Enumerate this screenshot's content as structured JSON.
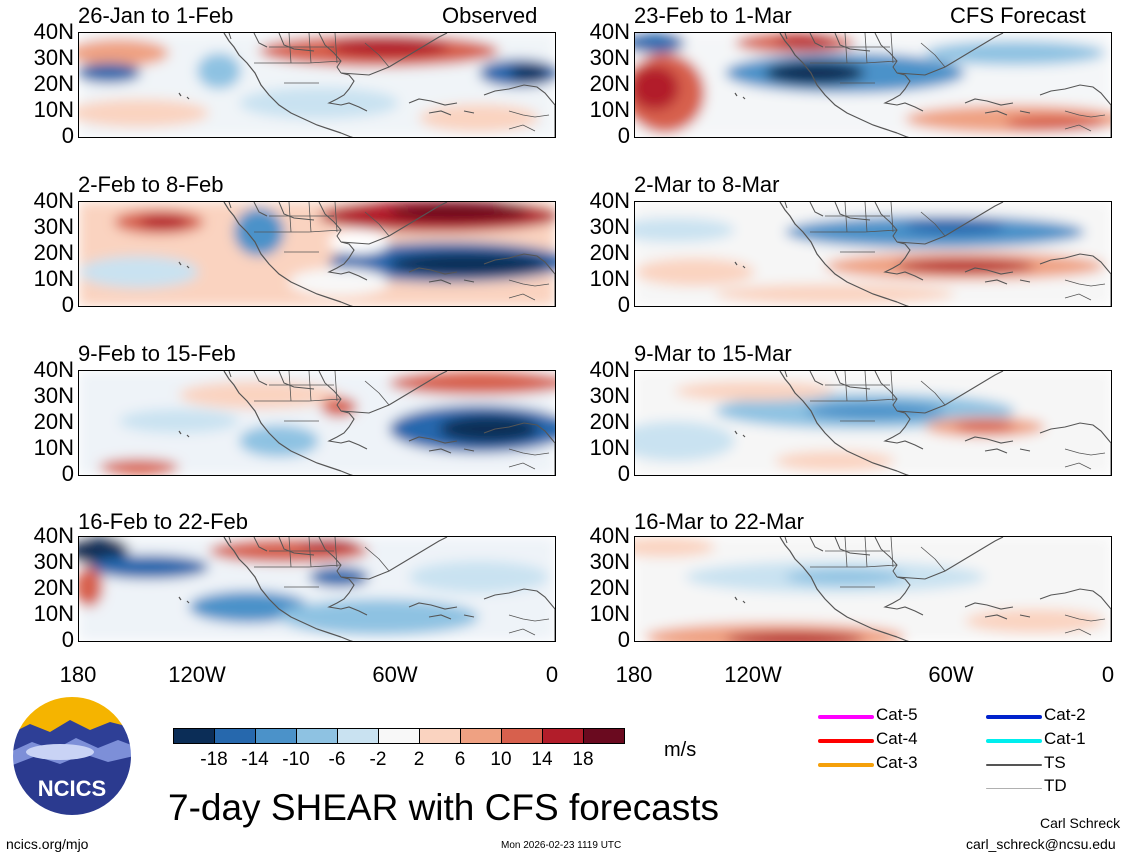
{
  "observed_label": "Observed",
  "forecast_label": "CFS Forecast",
  "panels": [
    {
      "title": "26-Jan to 1-Feb"
    },
    {
      "title": "2-Feb to 8-Feb"
    },
    {
      "title": "9-Feb to 15-Feb"
    },
    {
      "title": "16-Feb to 22-Feb"
    },
    {
      "title": "23-Feb to 1-Mar"
    },
    {
      "title": "2-Mar to 8-Mar"
    },
    {
      "title": "9-Mar to 15-Mar"
    },
    {
      "title": "16-Mar to 22-Mar"
    }
  ],
  "y_ticks": [
    "40N",
    "30N",
    "20N",
    "10N",
    "0"
  ],
  "x_ticks": [
    "180",
    "120W",
    "60W",
    "0"
  ],
  "colorbar": {
    "labels": [
      "-18",
      "-14",
      "-10",
      "-6",
      "-2",
      "2",
      "6",
      "10",
      "14",
      "18"
    ],
    "colors": [
      "#0b2d57",
      "#2668ad",
      "#4b92c9",
      "#8ec2e2",
      "#c9e2f1",
      "#f8f8f8",
      "#fad3c0",
      "#efa182",
      "#d7604d",
      "#b21d2a",
      "#6a0a1f"
    ],
    "unit": "m/s"
  },
  "legend": {
    "items": [
      {
        "label": "Cat-5",
        "color": "#ff00ff"
      },
      {
        "label": "Cat-4",
        "color": "#ff0000"
      },
      {
        "label": "Cat-3",
        "color": "#f5a00a"
      },
      {
        "label": "Cat-2",
        "color": "#0022cc"
      },
      {
        "label": "Cat-1",
        "color": "#00eeee"
      },
      {
        "label": "TS",
        "color": "#555555"
      },
      {
        "label": "TD",
        "color": "#b0b0b0"
      }
    ]
  },
  "main_title": "7-day SHEAR with CFS forecasts",
  "logo_text": "NCICS",
  "website": "ncics.org/mjo",
  "timestamp": "Mon 2026-02-23 1119 UTC",
  "author": "Carl Schreck",
  "email": "carl_schreck@ncsu.edu"
}
